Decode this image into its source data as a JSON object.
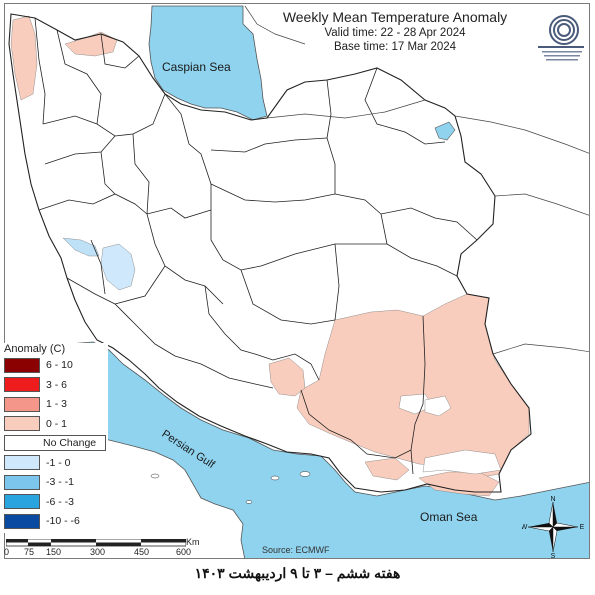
{
  "title": "Weekly Mean Temperature Anomaly",
  "valid_time": "Valid time: 22 - 28 Apr 2024",
  "base_time": "Base time: 17 Mar 2024",
  "legend": {
    "title": "Anomaly (C)",
    "items": [
      {
        "label": "6 - 10",
        "color": "#8b0000"
      },
      {
        "label": "3 - 6",
        "color": "#ee1c1c"
      },
      {
        "label": "1 - 3",
        "color": "#f4978a"
      },
      {
        "label": "0 - 1",
        "color": "#f9cdbd"
      },
      {
        "label": "No Change",
        "color": "#ffffff"
      },
      {
        "label": "-1 - 0",
        "color": "#cfe8fb"
      },
      {
        "label": "-3 - -1",
        "color": "#7cc6ee"
      },
      {
        "label": "-6 - -3",
        "color": "#2aa4df"
      },
      {
        "label": "-10 - -6",
        "color": "#0a4aa0"
      }
    ]
  },
  "seas": {
    "caspian": "Caspian Sea",
    "persian_gulf": "Persian Gulf",
    "oman": "Oman Sea"
  },
  "scale": {
    "ticks": [
      "0",
      "75",
      "150",
      "300",
      "450",
      "600"
    ],
    "unit": "Km"
  },
  "source": "Source: ECMWF",
  "compass": {
    "n": "N",
    "s": "S",
    "e": "E",
    "w": "W"
  },
  "footer": "هفته ششم – ۳ تا ۹ اردیبهشت ۱۴۰۳",
  "colors": {
    "sea": "#8fd3ee",
    "warm_light": "#f9cdbd",
    "cool_light": "#cfe8fb",
    "border": "#222222"
  }
}
